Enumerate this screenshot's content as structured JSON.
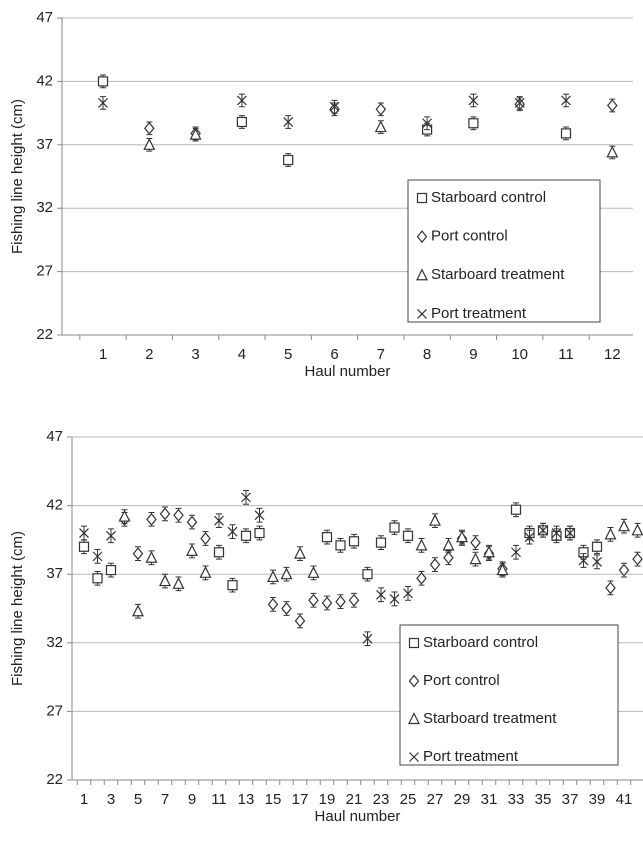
{
  "chart_data": [
    {
      "type": "scatter",
      "x_label": "Haul number",
      "y_label": "Fishing line height (cm)",
      "categories": [
        "1",
        "2",
        "3",
        "4",
        "5",
        "6",
        "7",
        "8",
        "9",
        "10",
        "11",
        "12"
      ],
      "ylim": [
        22,
        47
      ],
      "yticks": [
        22,
        27,
        32,
        37,
        42,
        47
      ],
      "grid": true,
      "legend": "lower right",
      "series": [
        {
          "name": "Starboard control",
          "marker": "square",
          "color": "#333333",
          "error": 0.5,
          "values": [
            42.0,
            null,
            null,
            38.8,
            35.8,
            null,
            null,
            38.2,
            38.7,
            null,
            37.9,
            null
          ]
        },
        {
          "name": "Port control",
          "marker": "diamond",
          "color": "#333333",
          "error": 0.5,
          "values": [
            null,
            38.3,
            37.9,
            null,
            null,
            39.8,
            39.8,
            null,
            null,
            40.2,
            null,
            40.1
          ]
        },
        {
          "name": "Starboard treatment",
          "marker": "triangle",
          "color": "#333333",
          "error": 0.5,
          "values": [
            null,
            37.0,
            37.8,
            null,
            null,
            null,
            38.4,
            null,
            null,
            null,
            null,
            36.4
          ]
        },
        {
          "name": "Port treatment",
          "marker": "x",
          "color": "#333333",
          "error": 0.5,
          "values": [
            40.3,
            null,
            null,
            40.5,
            38.8,
            40.0,
            null,
            38.7,
            40.5,
            40.3,
            40.5,
            null
          ]
        }
      ]
    },
    {
      "type": "scatter",
      "x_label": "Haul number",
      "y_label": "Fishing line height (cm)",
      "categories": [
        "1",
        null,
        "3",
        null,
        "5",
        null,
        "7",
        null,
        "9",
        null,
        "11",
        null,
        "13",
        null,
        "15",
        null,
        "17",
        null,
        "19",
        null,
        "21",
        null,
        "23",
        null,
        "25",
        null,
        "27",
        null,
        "29",
        null,
        "31",
        null,
        "33",
        null,
        "35",
        null,
        "37",
        null,
        "39",
        null,
        "41",
        null
      ],
      "ylim": [
        22,
        47
      ],
      "yticks": [
        22,
        27,
        32,
        37,
        42,
        47
      ],
      "grid": true,
      "legend": "lower right",
      "series": [
        {
          "name": "Starboard control",
          "marker": "square",
          "color": "#333333",
          "error": 0.5,
          "values": [
            39.0,
            36.7,
            37.3,
            null,
            null,
            null,
            null,
            null,
            null,
            null,
            38.6,
            36.2,
            39.8,
            40.0,
            null,
            null,
            null,
            null,
            39.7,
            39.1,
            39.4,
            37.0,
            39.3,
            40.4,
            39.8,
            null,
            null,
            null,
            null,
            null,
            null,
            null,
            41.7,
            40.0,
            40.2,
            39.8,
            40.0,
            38.6,
            39.0,
            null,
            null,
            null
          ]
        },
        {
          "name": "Port control",
          "marker": "diamond",
          "color": "#333333",
          "error": 0.5,
          "values": [
            null,
            null,
            null,
            41.0,
            38.5,
            41.0,
            41.4,
            41.3,
            40.8,
            39.6,
            null,
            null,
            null,
            null,
            34.8,
            34.5,
            33.6,
            35.1,
            34.9,
            35.0,
            35.1,
            null,
            null,
            null,
            null,
            36.7,
            37.7,
            38.2,
            39.6,
            39.3,
            38.5,
            37.4,
            null,
            null,
            null,
            null,
            null,
            null,
            null,
            36.0,
            37.3,
            38.1
          ]
        },
        {
          "name": "Starboard treatment",
          "marker": "triangle",
          "color": "#333333",
          "error": 0.5,
          "values": [
            null,
            null,
            null,
            41.2,
            34.3,
            38.2,
            36.5,
            36.3,
            38.7,
            37.1,
            null,
            null,
            null,
            null,
            36.8,
            37.0,
            38.5,
            37.1,
            null,
            null,
            null,
            null,
            null,
            null,
            null,
            39.1,
            40.9,
            39.1,
            39.7,
            38.1,
            38.6,
            37.3,
            null,
            null,
            null,
            null,
            null,
            null,
            null,
            39.9,
            40.5,
            40.2
          ]
        },
        {
          "name": "Port treatment",
          "marker": "x",
          "color": "#333333",
          "error": 0.5,
          "values": [
            40.0,
            38.3,
            39.8,
            null,
            null,
            null,
            null,
            null,
            null,
            null,
            40.9,
            40.1,
            42.6,
            41.3,
            null,
            null,
            null,
            null,
            null,
            null,
            null,
            32.3,
            35.5,
            35.2,
            35.6,
            null,
            null,
            null,
            null,
            null,
            null,
            null,
            38.6,
            39.7,
            40.2,
            40.0,
            40.0,
            38.0,
            37.9,
            null,
            null,
            null
          ]
        }
      ]
    }
  ]
}
